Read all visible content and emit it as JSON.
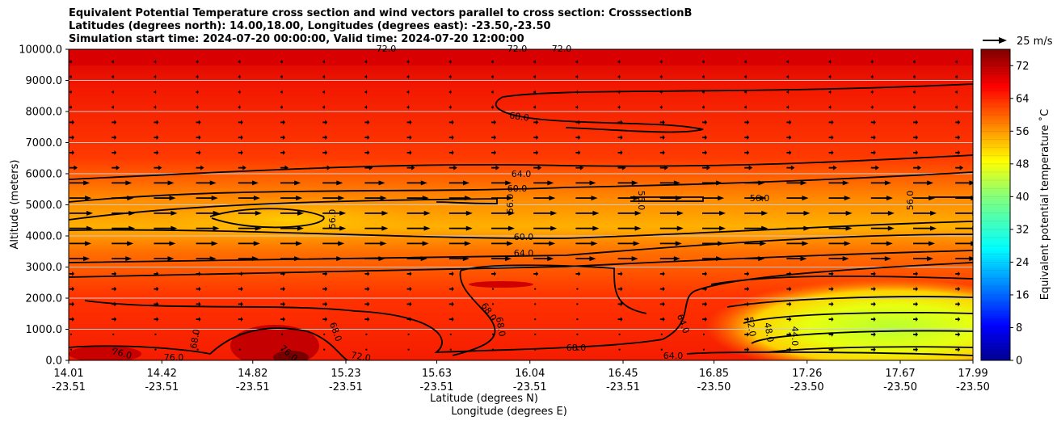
{
  "chart_data": {
    "type": "contourf",
    "title_lines": [
      "Equivalent Potential Temperature cross section and wind vectors parallel to cross section: CrosssectionB",
      "Latitudes (degrees north): 14.00,18.00, Longitudes (degrees east): -23.50,-23.50",
      "Simulation start time: 2024-07-20 00:00:00, Valid time: 2024-07-20 12:00:00"
    ],
    "ylabel": "Altitude (meters)",
    "xlabel_line1": "Latitude (degrees N)",
    "xlabel_line2": "Longitude (degrees E)",
    "ylim": [
      0,
      10000
    ],
    "y_ticks": [
      "0.0",
      "1000.0",
      "2000.0",
      "3000.0",
      "4000.0",
      "5000.0",
      "6000.0",
      "7000.0",
      "8000.0",
      "9000.0",
      "10000.0"
    ],
    "x_ticks": [
      {
        "lat": "14.01",
        "lon": "-23.51"
      },
      {
        "lat": "14.42",
        "lon": "-23.51"
      },
      {
        "lat": "14.82",
        "lon": "-23.51"
      },
      {
        "lat": "15.23",
        "lon": "-23.51"
      },
      {
        "lat": "15.63",
        "lon": "-23.51"
      },
      {
        "lat": "16.04",
        "lon": "-23.51"
      },
      {
        "lat": "16.45",
        "lon": "-23.51"
      },
      {
        "lat": "16.85",
        "lon": "-23.50"
      },
      {
        "lat": "17.26",
        "lon": "-23.50"
      },
      {
        "lat": "17.67",
        "lon": "-23.50"
      },
      {
        "lat": "17.99",
        "lon": "-23.50"
      }
    ],
    "colorbar": {
      "label": "Equivalent potential temperature ˚C",
      "min": 0,
      "max": 76,
      "ticks": [
        "0",
        "8",
        "16",
        "24",
        "32",
        "40",
        "48",
        "56",
        "64",
        "72"
      ]
    },
    "quiver_key": "25 m/s",
    "contour_labels": [
      "72.0",
      "72.0",
      "72.0",
      "68.0",
      "64.0",
      "60.0",
      "56.0",
      "56.0",
      "56.0",
      "56.0",
      "56.0",
      "60.0",
      "64.0",
      "68.0",
      "68.0",
      "68.0",
      "68.0",
      "64.0",
      "64.0",
      "52.0",
      "48.0",
      "44.0",
      "68.0",
      "76.0",
      "76.0",
      "76.0",
      "72.0"
    ]
  }
}
